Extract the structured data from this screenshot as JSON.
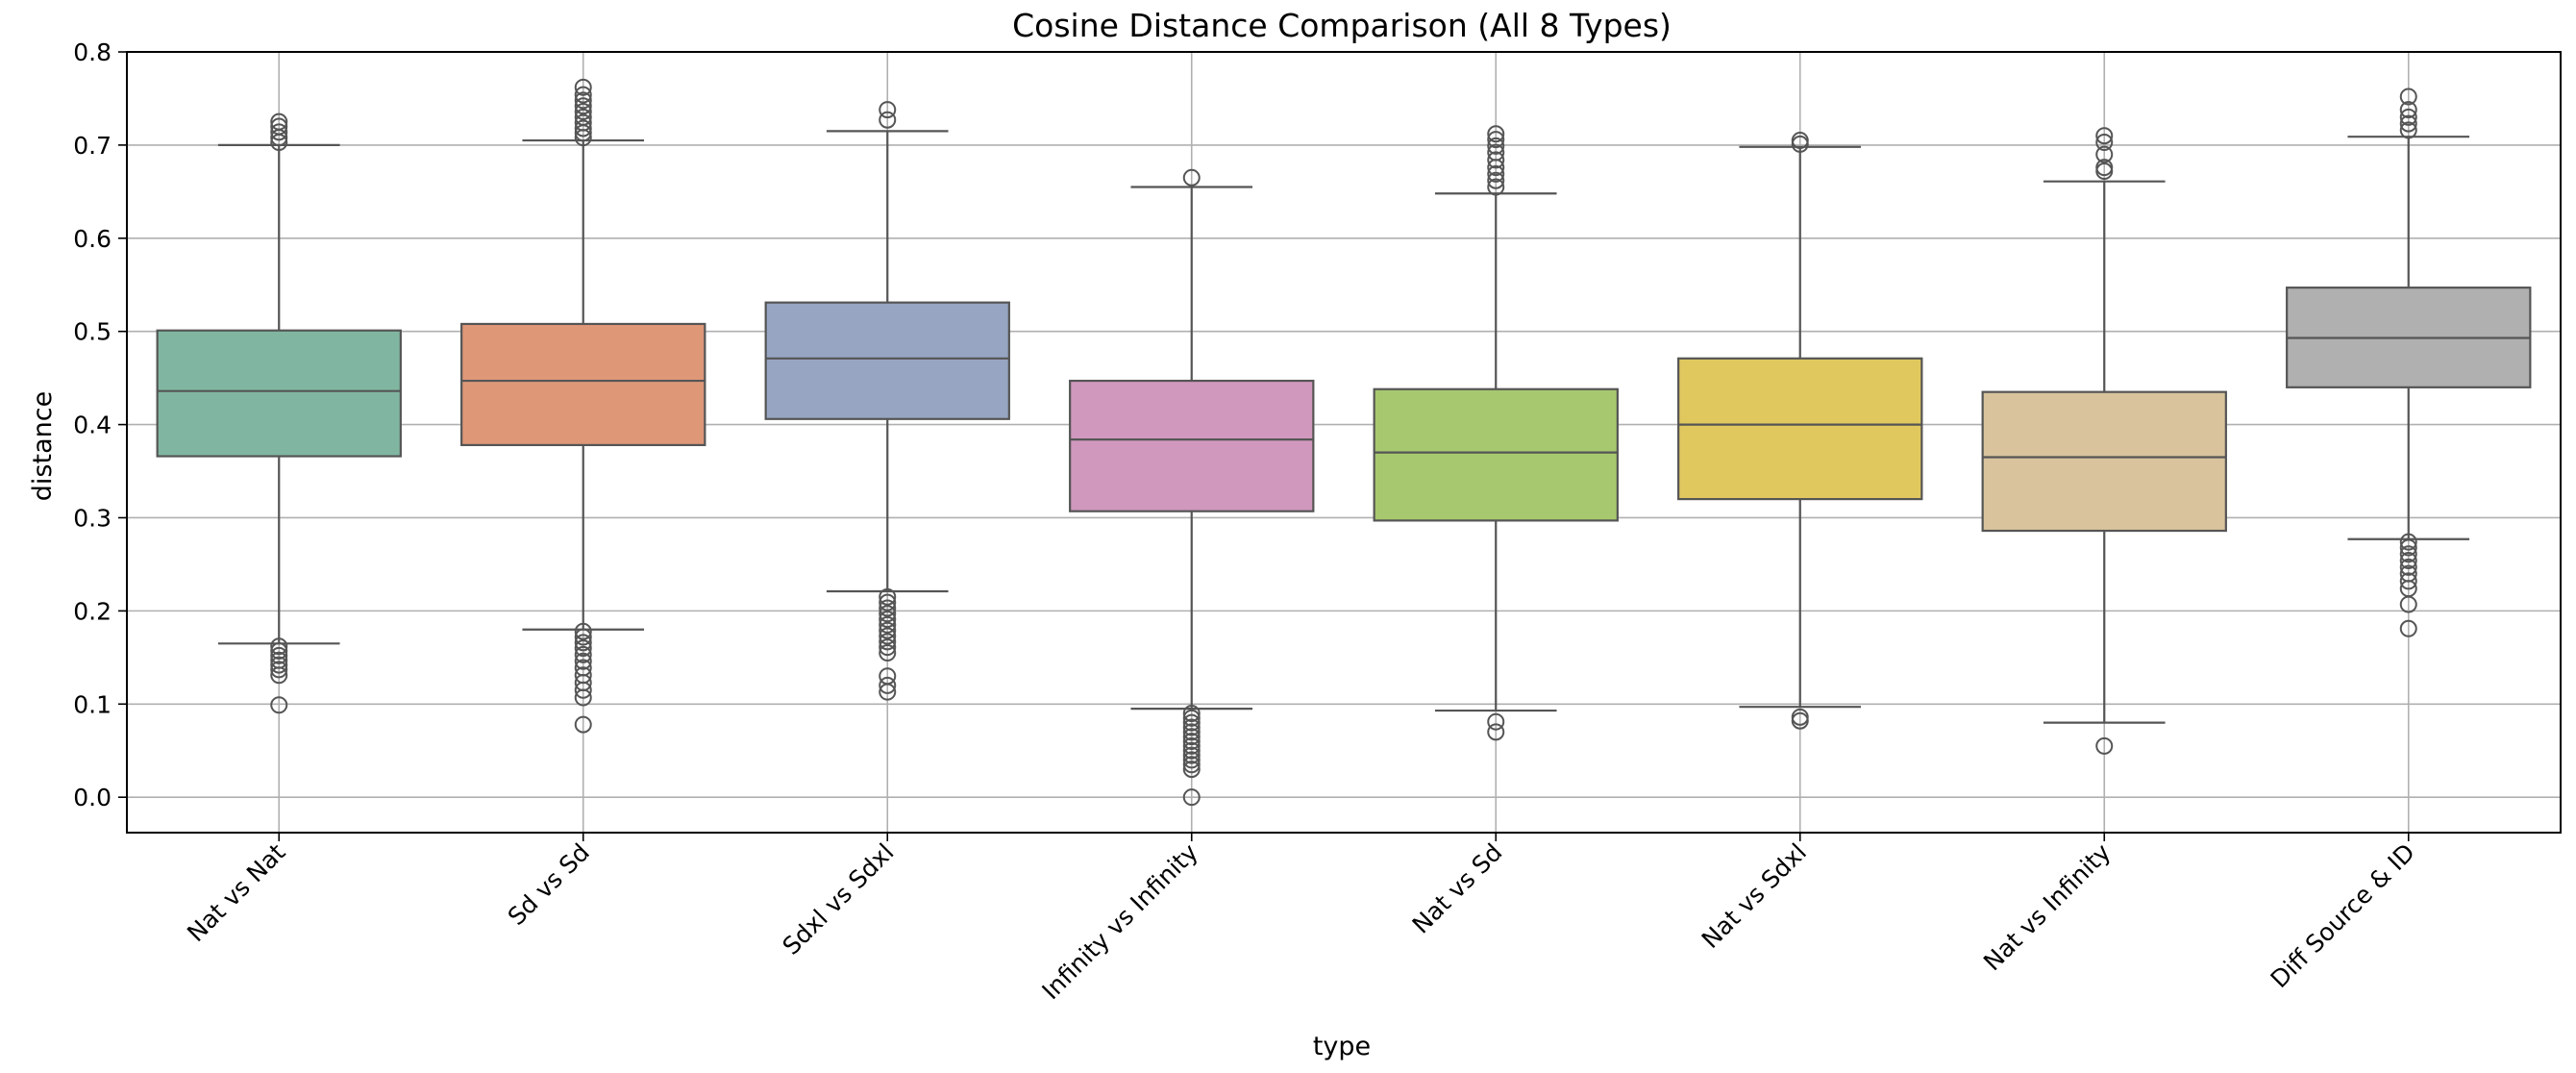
{
  "chart_data": {
    "type": "box",
    "title": "Cosine Distance Comparison (All 8 Types)",
    "xlabel": "type",
    "ylabel": "distance",
    "ylim": [
      -0.038,
      0.8
    ],
    "yticks": [
      0.0,
      0.1,
      0.2,
      0.3,
      0.4,
      0.5,
      0.6,
      0.7,
      0.8
    ],
    "ytick_labels": [
      "0.0",
      "0.1",
      "0.2",
      "0.3",
      "0.4",
      "0.5",
      "0.6",
      "0.7",
      "0.8"
    ],
    "grid": true,
    "categories": [
      "Nat vs Nat",
      "Sd vs Sd",
      "Sdxl vs Sdxl",
      "Infinity vs Infinity",
      "Nat vs Sd",
      "Nat vs Sdxl",
      "Nat vs Infinity",
      "Diff Source & ID"
    ],
    "boxes": [
      {
        "category": "Nat vs Nat",
        "color": "#80b6a1",
        "whislo": 0.165,
        "q1": 0.366,
        "median": 0.436,
        "q3": 0.501,
        "whishi": 0.7,
        "fliers": [
          0.162,
          0.157,
          0.152,
          0.147,
          0.142,
          0.137,
          0.131,
          0.099,
          0.703,
          0.708,
          0.714,
          0.72,
          0.725
        ]
      },
      {
        "category": "Sd vs Sd",
        "color": "#de9878",
        "whislo": 0.18,
        "q1": 0.378,
        "median": 0.447,
        "q3": 0.508,
        "whishi": 0.705,
        "fliers": [
          0.178,
          0.172,
          0.166,
          0.16,
          0.153,
          0.146,
          0.139,
          0.131,
          0.123,
          0.115,
          0.107,
          0.078,
          0.708,
          0.713,
          0.718,
          0.724,
          0.73,
          0.736,
          0.742,
          0.748,
          0.754,
          0.762
        ]
      },
      {
        "category": "Sdxl vs Sdxl",
        "color": "#97a5c2",
        "whislo": 0.221,
        "q1": 0.406,
        "median": 0.471,
        "q3": 0.531,
        "whishi": 0.715,
        "fliers": [
          0.215,
          0.209,
          0.203,
          0.197,
          0.191,
          0.185,
          0.179,
          0.173,
          0.167,
          0.161,
          0.155,
          0.13,
          0.12,
          0.113,
          0.727,
          0.738
        ]
      },
      {
        "category": "Infinity vs Infinity",
        "color": "#d098bd",
        "whislo": 0.095,
        "q1": 0.307,
        "median": 0.384,
        "q3": 0.447,
        "whishi": 0.655,
        "fliers": [
          0.09,
          0.085,
          0.08,
          0.075,
          0.07,
          0.065,
          0.06,
          0.055,
          0.05,
          0.045,
          0.04,
          0.035,
          0.03,
          0.0,
          0.665
        ]
      },
      {
        "category": "Nat vs Sd",
        "color": "#a7c86f",
        "whislo": 0.093,
        "q1": 0.297,
        "median": 0.37,
        "q3": 0.438,
        "whishi": 0.648,
        "fliers": [
          0.081,
          0.07,
          0.655,
          0.662,
          0.669,
          0.676,
          0.684,
          0.692,
          0.699,
          0.706,
          0.712
        ]
      },
      {
        "category": "Nat vs Sdxl",
        "color": "#e0c85f",
        "whislo": 0.097,
        "q1": 0.32,
        "median": 0.4,
        "q3": 0.471,
        "whishi": 0.698,
        "fliers": [
          0.086,
          0.082,
          0.701,
          0.705
        ]
      },
      {
        "category": "Nat vs Infinity",
        "color": "#d8c39d",
        "whislo": 0.08,
        "q1": 0.286,
        "median": 0.365,
        "q3": 0.435,
        "whishi": 0.661,
        "fliers": [
          0.055,
          0.672,
          0.676,
          0.69,
          0.703,
          0.71
        ]
      },
      {
        "category": "Diff Source & ID",
        "color": "#b0b0b0",
        "whislo": 0.277,
        "q1": 0.44,
        "median": 0.493,
        "q3": 0.547,
        "whishi": 0.709,
        "fliers": [
          0.274,
          0.268,
          0.261,
          0.254,
          0.247,
          0.24,
          0.232,
          0.224,
          0.207,
          0.181,
          0.716,
          0.723,
          0.73,
          0.738,
          0.752
        ]
      }
    ]
  }
}
